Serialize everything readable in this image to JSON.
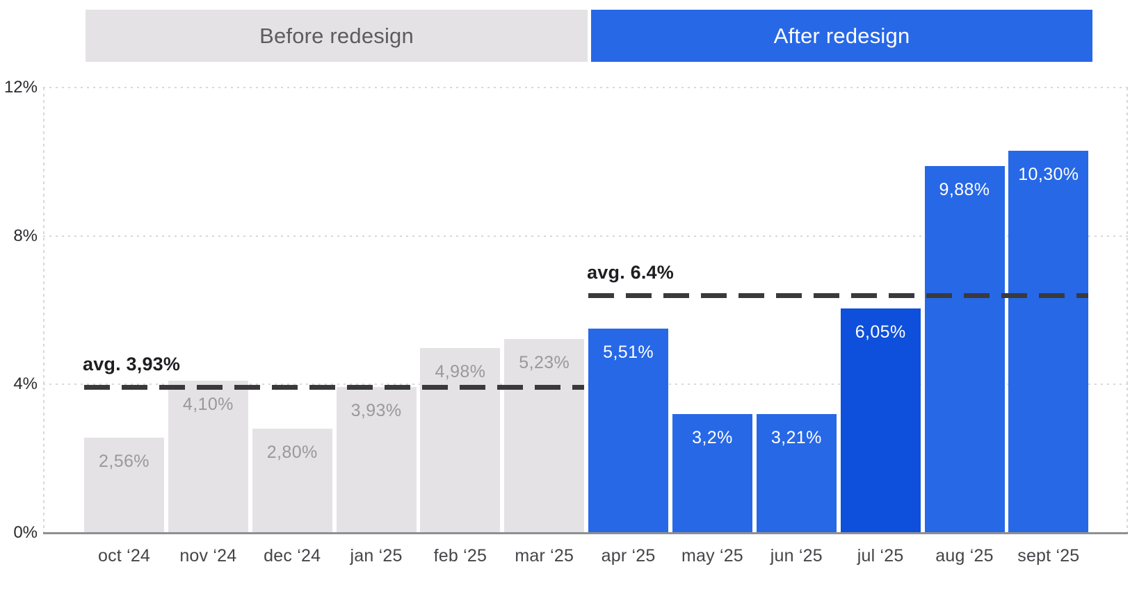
{
  "chart_data": {
    "type": "bar",
    "title": "",
    "xlabel": "",
    "ylabel": "",
    "categories": [
      "oct ‘24",
      "nov ‘24",
      "dec ‘24",
      "jan ‘25",
      "feb ‘25",
      "mar ‘25",
      "apr ‘25",
      "may ‘25",
      "jun ‘25",
      "jul ‘25",
      "aug ‘25",
      "sept ‘25"
    ],
    "values": [
      2.56,
      4.1,
      2.8,
      3.93,
      4.98,
      5.23,
      5.51,
      3.2,
      3.21,
      6.05,
      9.88,
      10.3
    ],
    "value_labels": [
      "2,56%",
      "4,10%",
      "2,80%",
      "3,93%",
      "4,98%",
      "5,23%",
      "5,51%",
      "3,2%",
      "3,21%",
      "6,05%",
      "9,88%",
      "10,30%"
    ],
    "segments": [
      {
        "name": "Before redesign",
        "category_span": [
          0,
          5
        ],
        "average": {
          "label": "avg. 3,93%",
          "value": 3.93
        }
      },
      {
        "name": "After redesign",
        "category_span": [
          6,
          11
        ],
        "average": {
          "label": "avg. 6.4%",
          "value": 6.4
        }
      }
    ],
    "highlighted_category": "jul ‘25",
    "highlight_index": 9,
    "y_ticks": [
      {
        "value": 0,
        "label": "0%"
      },
      {
        "value": 4,
        "label": "4%"
      },
      {
        "value": 8,
        "label": "8%"
      },
      {
        "value": 12,
        "label": "12%"
      }
    ],
    "ylim": [
      0,
      12
    ],
    "grid": "dotted horizontal, dotted left/right plot borders, solid bottom axis",
    "legend_position": "top banners",
    "colors": {
      "before_bar": "#E4E2E5",
      "before_value_text": "#9A989E",
      "before_banner_bg": "#E4E2E5",
      "before_banner_text": "#5C5C60",
      "after_bar": "#2768E7",
      "after_bar_highlight": "#0E50DB",
      "after_value_text": "#FFFFFF",
      "after_banner_bg": "#2768E7",
      "after_banner_text": "#FFFFFF",
      "avg_line": "#3A3A3C",
      "avg_label_text": "#1E1E22",
      "gridline": "#D8D8DC",
      "axis_line": "#8F8F93",
      "y_tick_text": "#2B2B2F",
      "x_tick_text": "#454549"
    }
  }
}
